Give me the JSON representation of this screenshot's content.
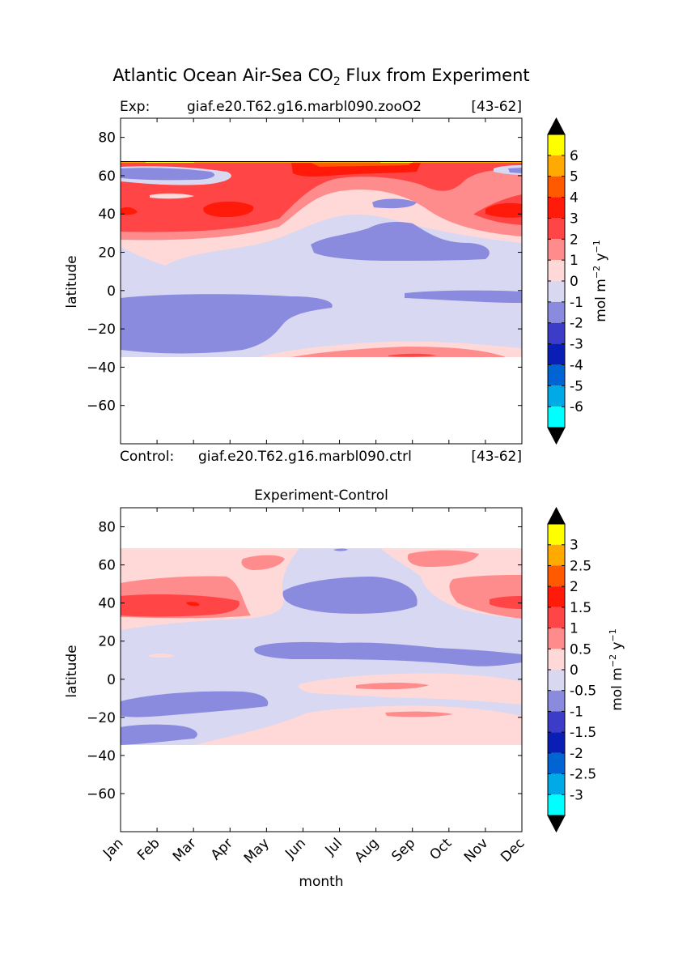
{
  "title": {
    "prefix": "Atlantic Ocean Air-Sea CO",
    "sub": "2",
    "suffix": " Flux from Experiment"
  },
  "month_labels": [
    "Jan",
    "Feb",
    "Mar",
    "Apr",
    "May",
    "Jun",
    "Jul",
    "Aug",
    "Sep",
    "Oct",
    "Nov",
    "Dec"
  ],
  "chart_data": [
    {
      "type": "heatmap",
      "name": "experiment",
      "header_left_label": "Exp:",
      "header_case": "giaf.e20.T62.g16.marbl090.zooO2",
      "header_years": "[43-62]",
      "footer_left_label": "Control:",
      "footer_case": "giaf.e20.T62.g16.marbl090.ctrl",
      "footer_years": "[43-62]",
      "xlabel": "",
      "ylabel": "latitude",
      "ylim": [
        -80,
        90
      ],
      "yticks": [
        "80",
        "60",
        "40",
        "20",
        "0",
        "−20",
        "−40",
        "−60"
      ],
      "yticks_values": [
        80,
        60,
        40,
        20,
        0,
        -20,
        -40,
        -60
      ],
      "data_lat_range": [
        -34,
        69
      ],
      "colorbar": {
        "label_prefix": "mol m",
        "label_sup1": "−2",
        "label_mid": " y",
        "label_sup2": "−1",
        "ticks": [
          "6",
          "5",
          "4",
          "3",
          "2",
          "1",
          "0",
          "-1",
          "-2",
          "-3",
          "-4",
          "-5",
          "-6"
        ],
        "colors": [
          "#ffff00",
          "#ffaa00",
          "#ff5a00",
          "#ff1a0a",
          "#ff4545",
          "#ff8c8c",
          "#ffd8d8",
          "#d8d8f2",
          "#8a8ade",
          "#3c3cc8",
          "#0a1eb4",
          "#0064d2",
          "#00aae6",
          "#00ffff"
        ],
        "extend_color": "#000000"
      }
    },
    {
      "type": "heatmap",
      "name": "experiment-minus-control",
      "title": "Experiment-Control",
      "xlabel": "month",
      "ylabel": "latitude",
      "ylim": [
        -80,
        90
      ],
      "yticks": [
        "80",
        "60",
        "40",
        "20",
        "0",
        "−20",
        "−40",
        "−60"
      ],
      "yticks_values": [
        80,
        60,
        40,
        20,
        0,
        -20,
        -40,
        -60
      ],
      "data_lat_range": [
        -34,
        69
      ],
      "colorbar": {
        "label_prefix": "mol m",
        "label_sup1": "−2",
        "label_mid": " y",
        "label_sup2": "−1",
        "ticks": [
          "3",
          "2.5",
          "2",
          "1.5",
          "1",
          "0.5",
          "0",
          "-0.5",
          "-1",
          "-1.5",
          "-2",
          "-2.5",
          "-3"
        ],
        "colors": [
          "#ffff00",
          "#ffaa00",
          "#ff5a00",
          "#ff1a0a",
          "#ff4545",
          "#ff8c8c",
          "#ffd8d8",
          "#d8d8f2",
          "#8a8ade",
          "#3c3cc8",
          "#0a1eb4",
          "#0064d2",
          "#00aae6",
          "#00ffff"
        ],
        "extend_color": "#000000"
      }
    }
  ]
}
